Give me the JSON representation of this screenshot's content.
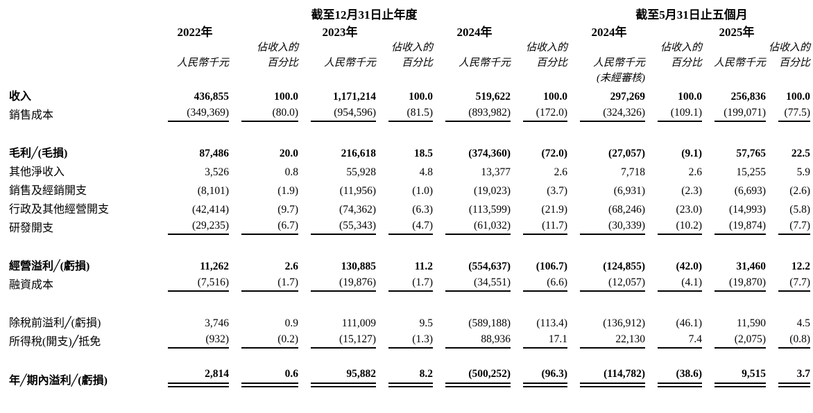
{
  "table": {
    "period_headers": [
      "截至12月31日止年度",
      "截至5月31日止五個月"
    ],
    "col_groups": [
      {
        "year": "2022年",
        "note": ""
      },
      {
        "year": "2023年",
        "note": ""
      },
      {
        "year": "2024年",
        "note": ""
      },
      {
        "year": "2024年",
        "note": "(未經審核)"
      },
      {
        "year": "2025年",
        "note": ""
      }
    ],
    "sub_headers": {
      "pct_line1": "佔收入的",
      "rmb": "人民幣千元",
      "pct_line2": "百分比"
    },
    "rows": [
      {
        "label": "收入",
        "bold": true,
        "values": [
          "436,855",
          "100.0",
          "1,171,214",
          "100.0",
          "519,622",
          "100.0",
          "297,269",
          "100.0",
          "256,836",
          "100.0"
        ]
      },
      {
        "label": "銷售成本",
        "rule": "single",
        "values": [
          "(349,369)",
          "(80.0)",
          "(954,596)",
          "(81.5)",
          "(893,982)",
          "(172.0)",
          "(324,326)",
          "(109.1)",
          "(199,071)",
          "(77.5)"
        ]
      },
      {
        "type": "spacer"
      },
      {
        "label": "毛利╱(毛損)",
        "bold": true,
        "values": [
          "87,486",
          "20.0",
          "216,618",
          "18.5",
          "(374,360)",
          "(72.0)",
          "(27,057)",
          "(9.1)",
          "57,765",
          "22.5"
        ]
      },
      {
        "label": "其他淨收入",
        "values": [
          "3,526",
          "0.8",
          "55,928",
          "4.8",
          "13,377",
          "2.6",
          "7,718",
          "2.6",
          "15,255",
          "5.9"
        ]
      },
      {
        "label": "銷售及經銷開支",
        "values": [
          "(8,101)",
          "(1.9)",
          "(11,956)",
          "(1.0)",
          "(19,023)",
          "(3.7)",
          "(6,931)",
          "(2.3)",
          "(6,693)",
          "(2.6)"
        ]
      },
      {
        "label": "行政及其他經營開支",
        "values": [
          "(42,414)",
          "(9.7)",
          "(74,362)",
          "(6.3)",
          "(113,599)",
          "(21.9)",
          "(68,246)",
          "(23.0)",
          "(14,993)",
          "(5.8)"
        ]
      },
      {
        "label": "研發開支",
        "rule": "single",
        "values": [
          "(29,235)",
          "(6.7)",
          "(55,343)",
          "(4.7)",
          "(61,032)",
          "(11.7)",
          "(30,339)",
          "(10.2)",
          "(19,874)",
          "(7.7)"
        ]
      },
      {
        "type": "spacer"
      },
      {
        "label": "經營溢利╱(虧損)",
        "bold": true,
        "values": [
          "11,262",
          "2.6",
          "130,885",
          "11.2",
          "(554,637)",
          "(106.7)",
          "(124,855)",
          "(42.0)",
          "31,460",
          "12.2"
        ]
      },
      {
        "label": "融資成本",
        "rule": "single",
        "values": [
          "(7,516)",
          "(1.7)",
          "(19,876)",
          "(1.7)",
          "(34,551)",
          "(6.6)",
          "(12,057)",
          "(4.1)",
          "(19,870)",
          "(7.7)"
        ]
      },
      {
        "type": "spacer"
      },
      {
        "label": "除稅前溢利╱(虧損)",
        "values": [
          "3,746",
          "0.9",
          "111,009",
          "9.5",
          "(589,188)",
          "(113.4)",
          "(136,912)",
          "(46.1)",
          "11,590",
          "4.5"
        ]
      },
      {
        "label": "所得稅(開支)╱抵免",
        "rule": "single",
        "values": [
          "(932)",
          "(0.2)",
          "(15,127)",
          "(1.3)",
          "88,936",
          "17.1",
          "22,130",
          "7.4",
          "(2,075)",
          "(0.8)"
        ]
      },
      {
        "type": "spacer"
      },
      {
        "label": "年╱期內溢利╱(虧損)",
        "bold": true,
        "rule": "double",
        "values": [
          "2,814",
          "0.6",
          "95,882",
          "8.2",
          "(500,252)",
          "(96.3)",
          "(114,782)",
          "(38.6)",
          "9,515",
          "3.7"
        ]
      }
    ]
  }
}
